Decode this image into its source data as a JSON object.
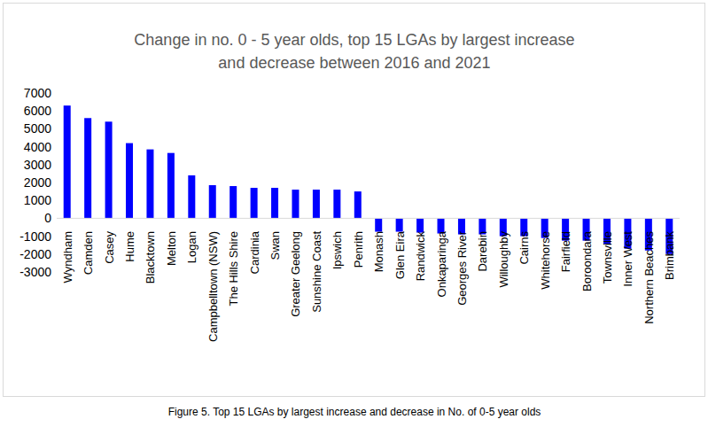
{
  "chart_data": {
    "type": "bar",
    "title": "Change in no. 0 - 5 year olds, top 15 LGAs by largest increase and decrease between 2016 and 2021",
    "caption": "Figure 5. Top 15 LGAs by largest increase and decrease in No. of 0-5 year olds",
    "categories": [
      "Wyndham",
      "Camden",
      "Casey",
      "Hume",
      "Blacktown",
      "Melton",
      "Logan",
      "Campbelltown (NSW)",
      "The Hills Shire",
      "Cardinia",
      "Swan",
      "Greater Geelong",
      "Sunshine Coast",
      "Ipswich",
      "Penrith",
      "Monash",
      "Glen Eira",
      "Randwick",
      "Onkaparinga",
      "Georges River",
      "Darebin",
      "Willoughby",
      "Cairns",
      "Whitehorse",
      "Fairfield",
      "Boroondara",
      "Townsville",
      "Inner West",
      "Northern Beaches",
      "Brimbank"
    ],
    "values": [
      6300,
      5600,
      5400,
      4200,
      3850,
      3650,
      2400,
      1850,
      1800,
      1700,
      1700,
      1600,
      1600,
      1600,
      1500,
      -750,
      -750,
      -800,
      -850,
      -900,
      -900,
      -1000,
      -1000,
      -1100,
      -1250,
      -1250,
      -1450,
      -1700,
      -1800,
      -2000
    ],
    "color": "#0000ff",
    "ylim": [
      -3000,
      7000
    ],
    "yticks": [
      -3000,
      -2000,
      -1000,
      0,
      1000,
      2000,
      3000,
      4000,
      5000,
      6000,
      7000
    ],
    "grid": false
  }
}
